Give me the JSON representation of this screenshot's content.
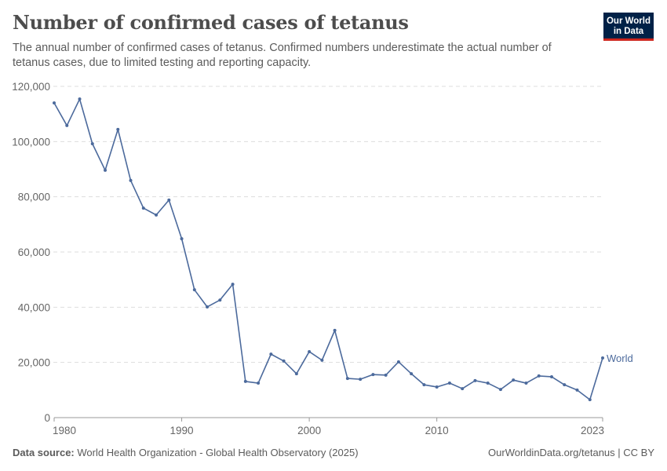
{
  "header": {
    "title": "Number of confirmed cases of tetanus",
    "subtitle": "The annual number of confirmed cases of tetanus. Confirmed numbers underestimate the actual number of tetanus cases, due to limited testing and reporting capacity.",
    "logo": "Our World in Data"
  },
  "footer": {
    "source_label": "Data source:",
    "source": "World Health Organization - Global Health Observatory (2025)",
    "link": "OurWorldinData.org/tetanus | CC BY"
  },
  "chart_data": {
    "type": "line",
    "title": "Number of confirmed cases of tetanus",
    "xlim": [
      1980,
      2023
    ],
    "ylim": [
      0,
      120000
    ],
    "grid": "horizontal dashed",
    "x_ticks": [
      1980,
      1990,
      2000,
      2010,
      2023
    ],
    "y_ticks": [
      0,
      20000,
      40000,
      60000,
      80000,
      100000,
      120000
    ],
    "y_tick_labels": [
      "0",
      "20,000",
      "40,000",
      "60,000",
      "80,000",
      "100,000",
      "120,000"
    ],
    "legend": "inline end label",
    "series": [
      {
        "name": "World",
        "color": "#4c6a9c",
        "x": [
          1980,
          1981,
          1982,
          1983,
          1984,
          1985,
          1986,
          1987,
          1988,
          1989,
          1990,
          1991,
          1992,
          1993,
          1994,
          1995,
          1996,
          1997,
          1998,
          1999,
          2000,
          2001,
          2002,
          2003,
          2004,
          2005,
          2006,
          2007,
          2008,
          2009,
          2010,
          2011,
          2012,
          2013,
          2014,
          2015,
          2016,
          2017,
          2018,
          2019,
          2020,
          2021,
          2022,
          2023
        ],
        "values": [
          114000,
          105800,
          115400,
          99200,
          89600,
          104400,
          85900,
          75900,
          73400,
          78800,
          64800,
          46300,
          40100,
          42600,
          48300,
          13100,
          12500,
          23000,
          20500,
          15900,
          23900,
          20800,
          31600,
          14200,
          13900,
          15600,
          15400,
          20200,
          15900,
          11900,
          11100,
          12500,
          10500,
          13400,
          12500,
          10200,
          13600,
          12500,
          15100,
          14800,
          11900,
          10000,
          6500,
          21600
        ]
      }
    ]
  }
}
